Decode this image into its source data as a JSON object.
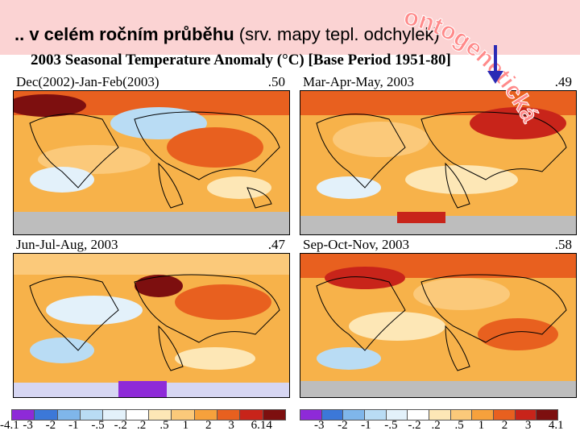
{
  "slide": {
    "title_bold": ".. v celém ročním průběhu",
    "title_rest": "  (srv. mapy tepl. odchylek)"
  },
  "figure": {
    "title": "2003 Seasonal Temperature Anomaly (°C) [Base Period 1951-80]"
  },
  "stamp_text": "ontogenetická",
  "panels": [
    {
      "label": "Dec(2002)-Jan-Feb(2003)",
      "value": ".50"
    },
    {
      "label": "Mar-Apr-May, 2003",
      "value": ".49"
    },
    {
      "label": "Jun-Jul-Aug, 2003",
      "value": ".47"
    },
    {
      "label": "Sep-Oct-Nov, 2003",
      "value": ".58"
    }
  ],
  "legend": {
    "colors": [
      "#8e2ad8",
      "#3c78d8",
      "#7fb6ea",
      "#b9dcf4",
      "#e3f1fa",
      "#ffffff",
      "#fde7b6",
      "#fbc97a",
      "#f6a13c",
      "#e8601f",
      "#c8241a",
      "#7d0f0f"
    ],
    "left_ticks": [
      "-4.1",
      "-3",
      "-2",
      "-1",
      "-.5",
      "-.2",
      ".2",
      ".5",
      "1",
      "2",
      "3",
      "6.14"
    ],
    "right_ticks": [
      "-3",
      "-2",
      "-1",
      "-.5",
      "-.2",
      ".2",
      ".5",
      "1",
      "2",
      "3",
      "4.1"
    ]
  }
}
